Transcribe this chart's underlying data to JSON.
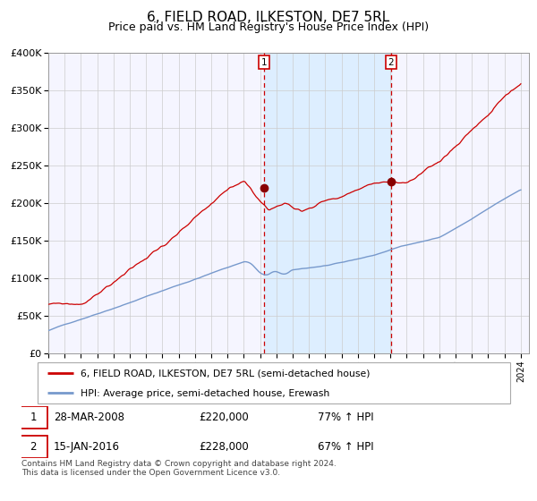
{
  "title": "6, FIELD ROAD, ILKESTON, DE7 5RL",
  "subtitle": "Price paid vs. HM Land Registry's House Price Index (HPI)",
  "title_fontsize": 11,
  "subtitle_fontsize": 9,
  "ylim": [
    0,
    400000
  ],
  "yticks": [
    0,
    50000,
    100000,
    150000,
    200000,
    250000,
    300000,
    350000,
    400000
  ],
  "ytick_labels": [
    "£0",
    "£50K",
    "£100K",
    "£150K",
    "£200K",
    "£250K",
    "£300K",
    "£350K",
    "£400K"
  ],
  "xstart_year": 1995,
  "xend_year": 2024,
  "red_line_color": "#cc0000",
  "blue_line_color": "#7799cc",
  "vline_color": "#cc0000",
  "shade_color": "#ddeeff",
  "dot_color": "#880000",
  "transaction1_year": 2008.24,
  "transaction1_value": 220000,
  "transaction2_year": 2016.04,
  "transaction2_value": 228000,
  "legend1": "6, FIELD ROAD, ILKESTON, DE7 5RL (semi-detached house)",
  "legend2": "HPI: Average price, semi-detached house, Erewash",
  "table_rows": [
    {
      "num": "1",
      "date": "28-MAR-2008",
      "price": "£220,000",
      "hpi": "77% ↑ HPI"
    },
    {
      "num": "2",
      "date": "15-JAN-2016",
      "price": "£228,000",
      "hpi": "67% ↑ HPI"
    }
  ],
  "footnote": "Contains HM Land Registry data © Crown copyright and database right 2024.\nThis data is licensed under the Open Government Licence v3.0.",
  "background_color": "#ffffff",
  "plot_bg_color": "#f5f5ff"
}
